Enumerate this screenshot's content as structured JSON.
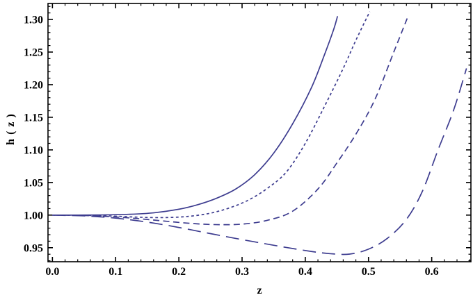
{
  "page": {
    "background": "#ffffff"
  },
  "chart_data": {
    "type": "line",
    "title": "",
    "xlabel": "z",
    "ylabel": "h ( z )",
    "grid": false,
    "legend": "none",
    "frame": true,
    "frame_color": "#000000",
    "line_color": "#3d3c8f",
    "x_range": [
      -0.007,
      0.662
    ],
    "y_range": [
      0.9285,
      1.3245
    ],
    "x_ticks": {
      "values": [
        0,
        0.1,
        0.2,
        0.3,
        0.4,
        0.5,
        0.6
      ],
      "labels": [
        "0.0",
        "0.1",
        "0.2",
        "0.3",
        "0.4",
        "0.5",
        "0.6"
      ],
      "minor_step": 0.02
    },
    "y_ticks": {
      "values": [
        0.95,
        1.0,
        1.05,
        1.1,
        1.15,
        1.2,
        1.25,
        1.3
      ],
      "labels": [
        "0.95",
        "1.00",
        "1.05",
        "1.10",
        "1.15",
        "1.20",
        "1.25",
        "1.30"
      ],
      "minor_step": 0.01
    },
    "series": [
      {
        "name": "solid",
        "style": "solid",
        "points": [
          [
            0,
            1.0
          ],
          [
            0.04,
            1.0
          ],
          [
            0.08,
            1.0003
          ],
          [
            0.12,
            1.0012
          ],
          [
            0.16,
            1.0035
          ],
          [
            0.2,
            1.009
          ],
          [
            0.23,
            1.016
          ],
          [
            0.26,
            1.026
          ],
          [
            0.29,
            1.04
          ],
          [
            0.32,
            1.062
          ],
          [
            0.35,
            1.095
          ],
          [
            0.38,
            1.14
          ],
          [
            0.41,
            1.196
          ],
          [
            0.43,
            1.245
          ],
          [
            0.445,
            1.285
          ],
          [
            0.451,
            1.305
          ]
        ]
      },
      {
        "name": "dotted",
        "style": "dotted",
        "points": [
          [
            0,
            1.0
          ],
          [
            0.05,
            0.9996
          ],
          [
            0.09,
            0.9987
          ],
          [
            0.13,
            0.997
          ],
          [
            0.16,
            0.9962
          ],
          [
            0.19,
            0.9965
          ],
          [
            0.22,
            0.9985
          ],
          [
            0.25,
            1.003
          ],
          [
            0.28,
            1.011
          ],
          [
            0.31,
            1.023
          ],
          [
            0.34,
            1.041
          ],
          [
            0.37,
            1.066
          ],
          [
            0.4,
            1.11
          ],
          [
            0.43,
            1.166
          ],
          [
            0.46,
            1.225
          ],
          [
            0.48,
            1.268
          ],
          [
            0.502,
            1.312
          ]
        ]
      },
      {
        "name": "dashed",
        "style": "dashed",
        "points": [
          [
            0,
            1.0
          ],
          [
            0.05,
            0.9994
          ],
          [
            0.1,
            0.9972
          ],
          [
            0.14,
            0.9942
          ],
          [
            0.18,
            0.9906
          ],
          [
            0.22,
            0.9872
          ],
          [
            0.26,
            0.9854
          ],
          [
            0.3,
            0.9862
          ],
          [
            0.34,
            0.992
          ],
          [
            0.38,
            1.006
          ],
          [
            0.42,
            1.04
          ],
          [
            0.45,
            1.08
          ],
          [
            0.48,
            1.124
          ],
          [
            0.51,
            1.177
          ],
          [
            0.54,
            1.25
          ],
          [
            0.563,
            1.306
          ]
        ]
      },
      {
        "name": "long-dashed",
        "style": "long-dashed",
        "points": [
          [
            0,
            1.0
          ],
          [
            0.05,
            0.9988
          ],
          [
            0.09,
            0.9962
          ],
          [
            0.13,
            0.992
          ],
          [
            0.17,
            0.9862
          ],
          [
            0.21,
            0.9792
          ],
          [
            0.25,
            0.9716
          ],
          [
            0.29,
            0.9642
          ],
          [
            0.33,
            0.9572
          ],
          [
            0.37,
            0.9504
          ],
          [
            0.41,
            0.9442
          ],
          [
            0.44,
            0.9408
          ],
          [
            0.47,
            0.9402
          ],
          [
            0.5,
            0.9478
          ],
          [
            0.53,
            0.9645
          ],
          [
            0.56,
            0.9935
          ],
          [
            0.585,
            1.036
          ],
          [
            0.61,
            1.1
          ],
          [
            0.635,
            1.162
          ],
          [
            0.655,
            1.225
          ]
        ]
      }
    ]
  }
}
